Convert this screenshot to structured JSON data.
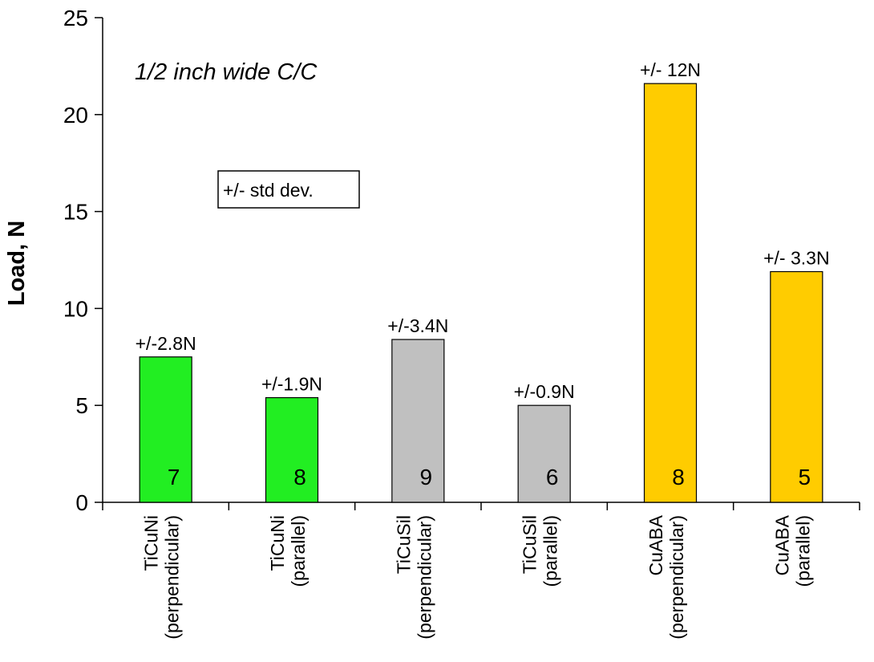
{
  "chart_data": {
    "type": "bar",
    "title": "",
    "xlabel": "",
    "ylabel": "Load, N",
    "ylim": [
      0,
      25
    ],
    "yticks": [
      0,
      5,
      10,
      15,
      20,
      25
    ],
    "grid": false,
    "categories": [
      [
        "TiCuNi",
        "(perpendicular)"
      ],
      [
        "TiCuNi",
        "(parallel)"
      ],
      [
        "TiCuSil",
        "(perpendicular)"
      ],
      [
        "TiCuSil",
        "(parallel)"
      ],
      [
        "CuABA",
        "(perpendicular)"
      ],
      [
        "CuABA",
        "(parallel)"
      ]
    ],
    "values": [
      7.5,
      5.4,
      8.4,
      5.0,
      21.6,
      11.9
    ],
    "error_labels": [
      "+/-2.8N",
      "+/-1.9N",
      "+/-3.4N",
      "+/-0.9N",
      "+/- 12N",
      "+/- 3.3N"
    ],
    "sample_counts": [
      "7",
      "8",
      "9",
      "6",
      "8",
      "5"
    ],
    "bar_colors": [
      "#22ee22",
      "#22ee22",
      "#c0c0c0",
      "#c0c0c0",
      "#ffcc00",
      "#ffcc00"
    ],
    "annotation": "1/2 inch wide C/C",
    "legend_box": "+/- std dev."
  }
}
